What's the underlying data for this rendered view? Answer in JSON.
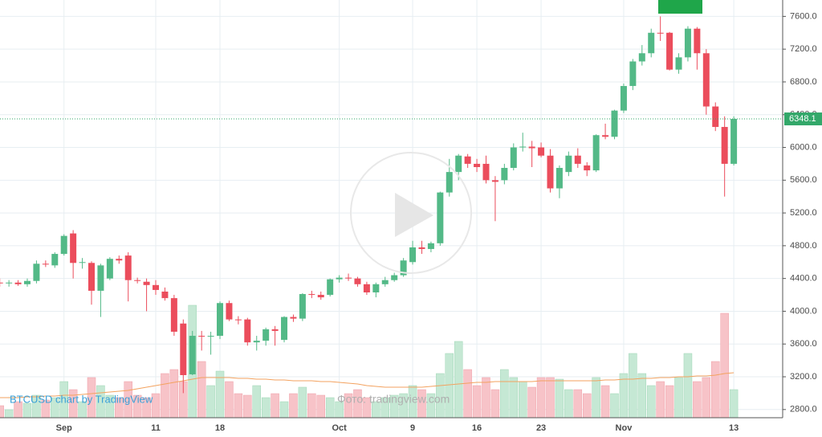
{
  "chart_data": {
    "type": "candlestick",
    "categories": [
      null,
      null,
      null,
      null,
      null,
      null,
      null,
      "Sep",
      null,
      null,
      null,
      null,
      null,
      null,
      null,
      null,
      null,
      "11",
      null,
      null,
      null,
      null,
      null,
      null,
      "18",
      null,
      null,
      null,
      null,
      null,
      null,
      null,
      null,
      null,
      null,
      null,
      null,
      "Oct",
      null,
      null,
      null,
      null,
      null,
      null,
      null,
      "9",
      null,
      null,
      null,
      null,
      null,
      null,
      "16",
      null,
      null,
      null,
      null,
      null,
      null,
      "23",
      null,
      null,
      null,
      null,
      null,
      null,
      null,
      null,
      "Nov",
      null,
      null,
      null,
      null,
      null,
      null,
      null,
      null,
      null,
      null,
      null,
      "13"
    ],
    "open": [
      4350,
      4340,
      4350,
      4330,
      4370,
      4580,
      4560,
      4700,
      4950,
      4590,
      4590,
      4250,
      4400,
      4640,
      4680,
      4380,
      4360,
      4320,
      4240,
      4160,
      3850,
      3230,
      3700,
      3690,
      3700,
      4100,
      3900,
      3900,
      3620,
      3640,
      3780,
      3650,
      3930,
      3910,
      4210,
      4200,
      4200,
      4390,
      4410,
      4400,
      4330,
      4230,
      4330,
      4380,
      4440,
      4600,
      4780,
      4760,
      4830,
      5450,
      5700,
      5890,
      5800,
      5800,
      5600,
      5600,
      5750,
      6000,
      6010,
      6000,
      5900,
      5500,
      5700,
      5900,
      5780,
      5720,
      6150,
      6130,
      6450,
      6750,
      7050,
      7150,
      7400,
      7400,
      6950,
      7100,
      7450,
      7150,
      6500,
      6250,
      5800
    ],
    "high": [
      4400,
      4380,
      4380,
      4400,
      4620,
      4620,
      4720,
      4940,
      4990,
      4650,
      4610,
      4580,
      4660,
      4680,
      4720,
      4410,
      4400,
      4380,
      4290,
      4200,
      3900,
      3760,
      3760,
      3750,
      4120,
      4130,
      3940,
      3920,
      3700,
      3800,
      3820,
      3940,
      3960,
      4220,
      4250,
      4240,
      4400,
      4440,
      4460,
      4420,
      4360,
      4350,
      4420,
      4470,
      4650,
      4860,
      4860,
      4850,
      5460,
      5860,
      5920,
      5920,
      5860,
      5900,
      5650,
      5800,
      6050,
      6180,
      6080,
      6060,
      5980,
      5780,
      5950,
      5990,
      5820,
      6160,
      6290,
      6460,
      6780,
      7080,
      7250,
      7450,
      7600,
      7410,
      7150,
      7480,
      7470,
      7200,
      6550,
      6380,
      6380
    ],
    "low": [
      4300,
      4300,
      4310,
      4300,
      4340,
      4540,
      4530,
      4680,
      4400,
      4520,
      4080,
      3930,
      4380,
      4580,
      4120,
      4340,
      4000,
      4200,
      4130,
      3700,
      3000,
      3220,
      3520,
      3470,
      3660,
      3880,
      3840,
      3580,
      3520,
      3580,
      3580,
      3620,
      3870,
      3880,
      4160,
      4140,
      4180,
      4350,
      4370,
      4300,
      4200,
      4170,
      4300,
      4360,
      4420,
      4570,
      4700,
      4720,
      4800,
      5400,
      5600,
      5750,
      5700,
      5560,
      5100,
      5550,
      5720,
      5950,
      5760,
      5880,
      5450,
      5380,
      5650,
      5750,
      5650,
      5700,
      6100,
      6100,
      6420,
      6700,
      7000,
      7100,
      7300,
      6940,
      6900,
      7050,
      6950,
      6400,
      6200,
      5400,
      5780
    ],
    "close": [
      4340,
      4350,
      4330,
      4370,
      4580,
      4570,
      4700,
      4920,
      4590,
      4600,
      4250,
      4560,
      4640,
      4620,
      4380,
      4370,
      4320,
      4260,
      4160,
      3750,
      3220,
      3700,
      3690,
      3700,
      4100,
      3900,
      3890,
      3620,
      3640,
      3780,
      3760,
      3930,
      3910,
      4210,
      4200,
      4170,
      4390,
      4410,
      4400,
      4330,
      4230,
      4330,
      4380,
      4440,
      4620,
      4780,
      4760,
      4830,
      5450,
      5700,
      5900,
      5800,
      5760,
      5600,
      5580,
      5750,
      6000,
      6010,
      5990,
      5900,
      5500,
      5750,
      5900,
      5800,
      5720,
      6150,
      6130,
      6450,
      6750,
      7050,
      7150,
      7400,
      7390,
      6950,
      7100,
      7450,
      7150,
      6500,
      6250,
      5800,
      6348.1
    ],
    "volume": [
      15,
      10,
      20,
      18,
      28,
      22,
      25,
      45,
      35,
      20,
      50,
      40,
      28,
      25,
      45,
      28,
      25,
      30,
      55,
      60,
      45,
      140,
      70,
      40,
      58,
      45,
      30,
      28,
      40,
      25,
      30,
      20,
      30,
      38,
      30,
      28,
      25,
      20,
      30,
      35,
      25,
      20,
      25,
      28,
      30,
      40,
      35,
      30,
      55,
      80,
      95,
      60,
      40,
      50,
      35,
      60,
      50,
      45,
      38,
      50,
      50,
      48,
      35,
      35,
      30,
      50,
      40,
      30,
      55,
      80,
      55,
      40,
      45,
      40,
      50,
      80,
      45,
      50,
      70,
      130,
      35
    ],
    "volume_ma": [
      25,
      25,
      25,
      26,
      26,
      27,
      27,
      28,
      28,
      29,
      30,
      31,
      32,
      33,
      34,
      36,
      38,
      40,
      42,
      44,
      46,
      48,
      50,
      50,
      50,
      50,
      49,
      49,
      48,
      48,
      47,
      47,
      46,
      46,
      46,
      45,
      45,
      44,
      43,
      42,
      40,
      39,
      38,
      38,
      38,
      38,
      38,
      39,
      40,
      41,
      42,
      43,
      44,
      44,
      45,
      45,
      45,
      45,
      45,
      46,
      46,
      46,
      46,
      46,
      46,
      46,
      47,
      47,
      48,
      48,
      49,
      49,
      50,
      50,
      51,
      51,
      52,
      52,
      53,
      55,
      56
    ],
    "up_color": "#53b987",
    "down_color": "#eb4d5c",
    "volume_up_color": "#c5e8d4",
    "volume_down_color": "#f7c3c8",
    "volume_ma_color": "#f3a25f",
    "ylim": [
      2700,
      7800
    ],
    "yticks": [
      {
        "value": 2800,
        "label": "2800.0"
      },
      {
        "value": 3200,
        "label": "3200.0"
      },
      {
        "value": 3600,
        "label": "3600.0"
      },
      {
        "value": 4000,
        "label": "4000.0"
      },
      {
        "value": 4400,
        "label": "4400.0"
      },
      {
        "value": 4800,
        "label": "4800.0"
      },
      {
        "value": 5200,
        "label": "5200.0"
      },
      {
        "value": 5600,
        "label": "5600.0"
      },
      {
        "value": 6000,
        "label": "6000.0"
      },
      {
        "value": 6400,
        "label": "6400.0"
      },
      {
        "value": 6800,
        "label": "6800.0"
      },
      {
        "value": 7200,
        "label": "7200.0"
      },
      {
        "value": 7600,
        "label": "7600.0"
      }
    ],
    "grid": true,
    "watermark": "BTCUSD chart by TradingView",
    "credit": "Фото: tradingview.com"
  }
}
